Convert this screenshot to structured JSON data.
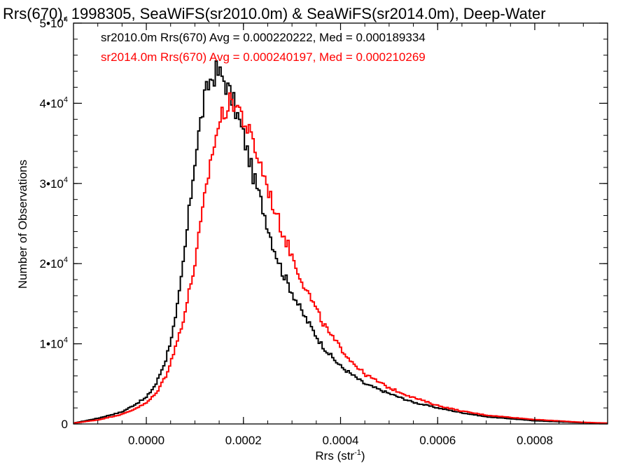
{
  "chart_data": {
    "type": "line",
    "title": "Rrs(670), 1998305, SeaWiFS(sr2010.0m) & SeaWiFS(sr2014.0m), Deep-Water",
    "xlabel": "Rrs (str",
    "xlabel_sup": "-1",
    "xlabel_end": ")",
    "ylabel": "Number of Observations",
    "xlim": [
      -0.00015,
      0.00095
    ],
    "ylim": [
      0,
      50000
    ],
    "x_ticks": [
      0.0,
      0.0002,
      0.0004,
      0.0006,
      0.0008
    ],
    "x_tick_labels": [
      "0.0000",
      "0.0002",
      "0.0004",
      "0.0006",
      "0.0008"
    ],
    "y_ticks": [
      0,
      10000,
      20000,
      30000,
      40000,
      50000
    ],
    "y_tick_labels": [
      {
        "base": "0",
        "sup": ""
      },
      {
        "base": "1•10",
        "sup": "4"
      },
      {
        "base": "2•10",
        "sup": "4"
      },
      {
        "base": "3•10",
        "sup": "4"
      },
      {
        "base": "4•10",
        "sup": "4"
      },
      {
        "base": "5•10",
        "sup": "4"
      }
    ],
    "legend_position": "top-left",
    "grid": false,
    "style": "step histogram",
    "series": [
      {
        "name": "sr2010.0m Rrs(670) Avg = 0.000220222, Med = 0.000189334",
        "color": "#000000",
        "x": [
          -0.00015,
          -0.0001,
          -5e-05,
          -3e-05,
          0.0,
          2e-05,
          4e-05,
          6e-05,
          7e-05,
          8e-05,
          9e-05,
          0.0001,
          0.00011,
          0.00012,
          0.00013,
          0.000145,
          0.00016,
          0.00017,
          0.00018,
          0.0002,
          0.00022,
          0.00024,
          0.00026,
          0.00028,
          0.0003,
          0.00032,
          0.00034,
          0.00036,
          0.00038,
          0.0004,
          0.00042,
          0.00045,
          0.0005,
          0.00055,
          0.0006,
          0.00065,
          0.0007,
          0.0008,
          0.0009,
          0.00095
        ],
        "y": [
          100,
          700,
          1500,
          2200,
          3300,
          5000,
          8000,
          13000,
          17000,
          22000,
          27500,
          33000,
          37000,
          40500,
          42700,
          44000,
          43000,
          41500,
          40000,
          36000,
          31000,
          27000,
          22500,
          19000,
          16500,
          14000,
          12000,
          10000,
          8500,
          7200,
          6300,
          5000,
          3800,
          2700,
          2000,
          1400,
          900,
          400,
          150,
          100
        ]
      },
      {
        "name": "sr2014.0m Rrs(670) Avg = 0.000240197, Med = 0.000210269",
        "color": "#ff0000",
        "x": [
          -0.00015,
          -0.0001,
          -5e-05,
          -3e-05,
          0.0,
          2e-05,
          4e-05,
          6e-05,
          8e-05,
          0.0001,
          0.00011,
          0.00012,
          0.00013,
          0.00014,
          0.00015,
          0.00016,
          0.00017,
          0.00018,
          0.00019,
          0.0002,
          0.00022,
          0.00024,
          0.00026,
          0.00028,
          0.0003,
          0.00032,
          0.00034,
          0.00036,
          0.00038,
          0.0004,
          0.00042,
          0.00045,
          0.0005,
          0.00055,
          0.0006,
          0.00065,
          0.0007,
          0.0008,
          0.0009,
          0.00095
        ],
        "y": [
          100,
          500,
          1200,
          1700,
          2600,
          3800,
          6000,
          9500,
          14000,
          20000,
          24000,
          28000,
          32000,
          35000,
          37500,
          39000,
          39800,
          40300,
          39500,
          38000,
          35000,
          31500,
          27500,
          24000,
          21000,
          18000,
          15500,
          13000,
          11000,
          9500,
          8000,
          6200,
          4500,
          3300,
          2300,
          1600,
          1100,
          550,
          200,
          100
        ]
      }
    ]
  }
}
